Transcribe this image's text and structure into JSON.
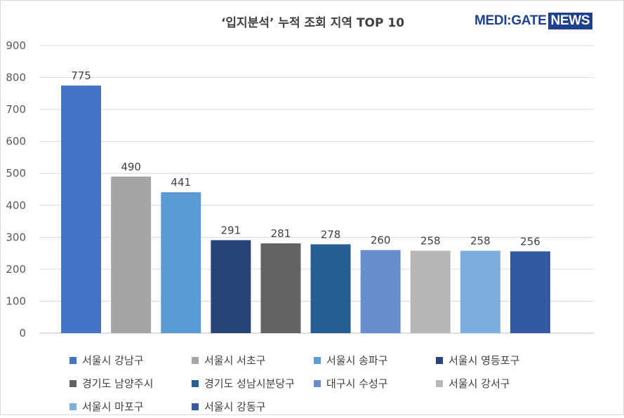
{
  "logo": {
    "medi": "MEDI:GATE",
    "news": "NEWS"
  },
  "chart_data": {
    "type": "bar",
    "title": "‘입지분석’ 누적 조회 지역 TOP 10",
    "xlabel": "",
    "ylabel": "",
    "ylim": [
      0,
      900
    ],
    "yticks": [
      0,
      100,
      200,
      300,
      400,
      500,
      600,
      700,
      800,
      900
    ],
    "grid": true,
    "legend_position": "bottom",
    "categories": [
      "서울시 강남구",
      "서울시 서초구",
      "서울시 송파구",
      "서울시 영등포구",
      "경기도 남양주시",
      "경기도 성남시분당구",
      "대구시 수성구",
      "서울시 강서구",
      "서울시 마포구",
      "서울시 강동구"
    ],
    "values": [
      775,
      490,
      441,
      291,
      281,
      278,
      260,
      258,
      258,
      256
    ],
    "colors": [
      "#4472c4",
      "#a5a5a5",
      "#5b9bd5",
      "#264478",
      "#636363",
      "#255e91",
      "#698ed0",
      "#b7b7b7",
      "#7cafdd",
      "#335aa1"
    ]
  }
}
